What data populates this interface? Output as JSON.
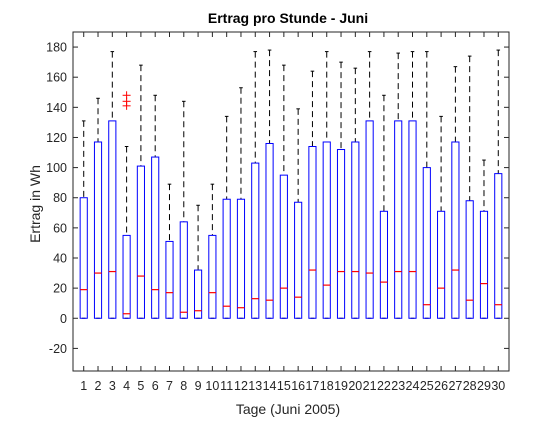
{
  "chart_data": {
    "type": "boxplot",
    "title": "Ertrag pro Stunde - Juni",
    "xlabel": "Tage (Juni 2005)",
    "ylabel": "Ertrag in Wh",
    "ylim": [
      -35,
      190
    ],
    "yticks": [
      -20,
      0,
      20,
      40,
      60,
      80,
      100,
      120,
      140,
      160,
      180
    ],
    "grid": false,
    "colors": {
      "box": "#0000ff",
      "median": "#ff0000",
      "whisker": "#000000",
      "outlier": "#ff0000",
      "axes": "#262626"
    },
    "categories": [
      "1",
      "2",
      "3",
      "4",
      "5",
      "6",
      "7",
      "8",
      "9",
      "10",
      "11",
      "12",
      "13",
      "14",
      "15",
      "16",
      "17",
      "18",
      "19",
      "20",
      "21",
      "22",
      "23",
      "24",
      "25",
      "26",
      "27",
      "28",
      "29",
      "30"
    ],
    "boxes": [
      {
        "low": 0,
        "q1": 0,
        "median": 19,
        "q3": 80,
        "high": 131,
        "outliers": []
      },
      {
        "low": 0,
        "q1": 0,
        "median": 30,
        "q3": 117,
        "high": 146,
        "outliers": []
      },
      {
        "low": 0,
        "q1": 0,
        "median": 31,
        "q3": 131,
        "high": 177,
        "outliers": []
      },
      {
        "low": 0,
        "q1": 0,
        "median": 3,
        "q3": 55,
        "high": 114,
        "outliers": [
          141,
          144,
          148
        ]
      },
      {
        "low": 0,
        "q1": 0,
        "median": 28,
        "q3": 101,
        "high": 168,
        "outliers": []
      },
      {
        "low": 0,
        "q1": 0,
        "median": 19,
        "q3": 107,
        "high": 148,
        "outliers": []
      },
      {
        "low": 0,
        "q1": 0,
        "median": 17,
        "q3": 51,
        "high": 89,
        "outliers": []
      },
      {
        "low": 0,
        "q1": 0,
        "median": 4,
        "q3": 64,
        "high": 144,
        "outliers": []
      },
      {
        "low": 0,
        "q1": 0,
        "median": 5,
        "q3": 32,
        "high": 75,
        "outliers": []
      },
      {
        "low": 0,
        "q1": 0,
        "median": 17,
        "q3": 55,
        "high": 89,
        "outliers": []
      },
      {
        "low": 0,
        "q1": 0,
        "median": 8,
        "q3": 79,
        "high": 134,
        "outliers": []
      },
      {
        "low": 0,
        "q1": 0,
        "median": 7,
        "q3": 79,
        "high": 153,
        "outliers": []
      },
      {
        "low": 0,
        "q1": 0,
        "median": 13,
        "q3": 103,
        "high": 177,
        "outliers": []
      },
      {
        "low": 0,
        "q1": 0,
        "median": 12,
        "q3": 116,
        "high": 178,
        "outliers": []
      },
      {
        "low": 0,
        "q1": 0,
        "median": 20,
        "q3": 95,
        "high": 168,
        "outliers": []
      },
      {
        "low": 0,
        "q1": 0,
        "median": 14,
        "q3": 77,
        "high": 139,
        "outliers": []
      },
      {
        "low": 0,
        "q1": 0,
        "median": 32,
        "q3": 114,
        "high": 164,
        "outliers": []
      },
      {
        "low": 0,
        "q1": 0,
        "median": 22,
        "q3": 117,
        "high": 177,
        "outliers": []
      },
      {
        "low": 0,
        "q1": 0,
        "median": 31,
        "q3": 112,
        "high": 170,
        "outliers": []
      },
      {
        "low": 0,
        "q1": 0,
        "median": 31,
        "q3": 117,
        "high": 166,
        "outliers": []
      },
      {
        "low": 0,
        "q1": 0,
        "median": 30,
        "q3": 131,
        "high": 177,
        "outliers": []
      },
      {
        "low": 0,
        "q1": 0,
        "median": 24,
        "q3": 71,
        "high": 148,
        "outliers": []
      },
      {
        "low": 0,
        "q1": 0,
        "median": 31,
        "q3": 131,
        "high": 176,
        "outliers": []
      },
      {
        "low": 0,
        "q1": 0,
        "median": 31,
        "q3": 131,
        "high": 177,
        "outliers": []
      },
      {
        "low": 0,
        "q1": 0,
        "median": 9,
        "q3": 100,
        "high": 177,
        "outliers": []
      },
      {
        "low": 0,
        "q1": 0,
        "median": 20,
        "q3": 71,
        "high": 134,
        "outliers": []
      },
      {
        "low": 0,
        "q1": 0,
        "median": 32,
        "q3": 117,
        "high": 167,
        "outliers": []
      },
      {
        "low": 0,
        "q1": 0,
        "median": 12,
        "q3": 78,
        "high": 174,
        "outliers": []
      },
      {
        "low": 0,
        "q1": 0,
        "median": 23,
        "q3": 71,
        "high": 105,
        "outliers": []
      },
      {
        "low": 0,
        "q1": 0,
        "median": 9,
        "q3": 96,
        "high": 178,
        "outliers": []
      }
    ]
  }
}
